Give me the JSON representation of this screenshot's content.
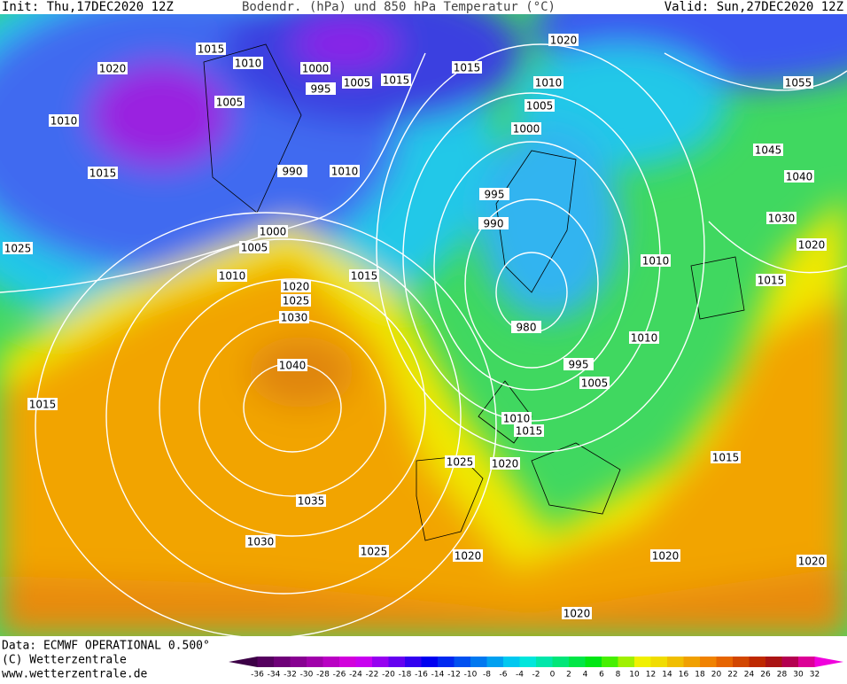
{
  "header": {
    "init": "Init: Thu,17DEC2020 12Z",
    "title": "Bodendr. (hPa) und 850 hPa Temperatur (°C)",
    "valid": "Valid: Sun,27DEC2020 12Z"
  },
  "map": {
    "isobar_labels": [
      "1015",
      "1010",
      "1020",
      "1000",
      "995",
      "1005",
      "1015",
      "1005",
      "1010",
      "1015",
      "990",
      "1010",
      "1020",
      "1015",
      "1010",
      "1005",
      "1000",
      "995",
      "990",
      "1055",
      "1045",
      "1040",
      "1030",
      "1020",
      "1025",
      "1005",
      "1000",
      "1010",
      "1015",
      "1010",
      "1015",
      "1020",
      "1025",
      "1030",
      "1040",
      "980",
      "1010",
      "995",
      "1005",
      "1015",
      "1010",
      "1015",
      "1025",
      "1020",
      "1015",
      "1035",
      "1030",
      "1025",
      "1020",
      "1020",
      "1020",
      "1020"
    ]
  },
  "footer": {
    "data": "Data: ECMWF OPERATIONAL 0.500°",
    "copyright": "(C) Wetterzentrale",
    "url": "www.wetterzentrale.de"
  },
  "color_scale": {
    "labels": [
      "-36",
      "-34",
      "-32",
      "-30",
      "-28",
      "-26",
      "-24",
      "-22",
      "-20",
      "-18",
      "-16",
      "-14",
      "-12",
      "-10",
      "-8",
      "-6",
      "-4",
      "-2",
      "0",
      "2",
      "4",
      "6",
      "8",
      "10",
      "12",
      "14",
      "16",
      "18",
      "20",
      "22",
      "24",
      "26",
      "28",
      "30",
      "32"
    ],
    "colors": [
      "#3c0046",
      "#55005f",
      "#6e0078",
      "#870091",
      "#a000aa",
      "#b900c3",
      "#d200dc",
      "#c800f0",
      "#9600f0",
      "#6400f0",
      "#3200f0",
      "#0000f0",
      "#0028f0",
      "#0050f0",
      "#0078f0",
      "#00a0f0",
      "#00c8f0",
      "#00e6dc",
      "#00e6aa",
      "#00e678",
      "#00e646",
      "#00e614",
      "#46f000",
      "#a0f000",
      "#f0f000",
      "#f0dc00",
      "#f0be00",
      "#f0a000",
      "#f08200",
      "#e66400",
      "#d24600",
      "#be2800",
      "#aa1414",
      "#b40050",
      "#dc0096",
      "#f000dc"
    ]
  }
}
